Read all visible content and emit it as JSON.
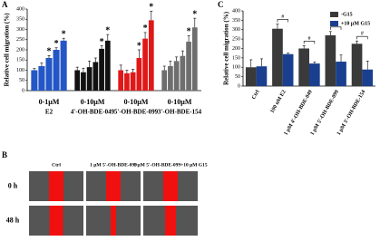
{
  "panel_labels": [
    "A",
    "B",
    "C"
  ],
  "chart_data": [
    {
      "type": "bar",
      "y_label": "Relative cell migration (%)",
      "ylim": [
        0,
        400
      ],
      "yticks": [
        0,
        50,
        100,
        150,
        200,
        250,
        300,
        350,
        400
      ],
      "star": "*",
      "groups": [
        {
          "range": "0-1μM",
          "name": "E2",
          "color": "#2457c5",
          "values": [
            100,
            120,
            160,
            200,
            245
          ],
          "errors": [
            8,
            15,
            12,
            10,
            12
          ],
          "starred": [
            2,
            3,
            4
          ]
        },
        {
          "range": "0-10μM",
          "name": "4'-OH-BDE-049",
          "color": "#111111",
          "values": [
            100,
            90,
            115,
            140,
            205,
            245
          ],
          "errors": [
            15,
            20,
            30,
            20,
            15,
            30
          ],
          "starred": [
            4,
            5
          ]
        },
        {
          "range": "0-10μM",
          "name": "5'-OH-BDE-099",
          "color": "#e01818",
          "values": [
            100,
            85,
            90,
            160,
            255,
            345
          ],
          "errors": [
            25,
            15,
            15,
            40,
            30,
            45
          ],
          "starred": [
            3,
            4,
            5
          ]
        },
        {
          "range": "0-10μM",
          "name": "3'-OH-BDE-154",
          "color": "#6e6e6e",
          "values": [
            100,
            120,
            145,
            170,
            240,
            310
          ],
          "errors": [
            20,
            25,
            20,
            25,
            30,
            45
          ],
          "starred": [
            4,
            5
          ]
        }
      ]
    },
    {
      "type": "grouped_bar",
      "y_label": "Relative cell migration (%)",
      "ylim": [
        0,
        400
      ],
      "yticks": [
        0,
        50,
        100,
        150,
        200,
        250,
        300,
        350,
        400
      ],
      "categories": [
        "Ctrl",
        "100 nM E2",
        "1 μM 4'-OH-BDE-049",
        "1 μM 5'-OH-BDE-099",
        "1 μM 3'-OH-BDE-154"
      ],
      "series": [
        {
          "name": "-G15",
          "color": "#3a3a3a",
          "values": [
            100,
            305,
            200,
            270,
            225
          ],
          "errors": [
            40,
            25,
            15,
            20,
            15
          ]
        },
        {
          "name": "+10 μM G15",
          "color": "#1b3f8f",
          "values": [
            105,
            170,
            120,
            130,
            88
          ],
          "errors": [
            40,
            5,
            8,
            35,
            45
          ]
        }
      ],
      "hash": "#",
      "hashed": [
        1,
        2,
        3,
        4
      ],
      "legend": "upper right"
    }
  ],
  "panel_b": {
    "col_headers": [
      "Ctrl",
      "1 μM 5'-OH-BDE-099",
      "1 μM 5'-OH-BDE-099+10 μM G15"
    ],
    "row_labels": [
      "0 h",
      "48 h"
    ]
  }
}
